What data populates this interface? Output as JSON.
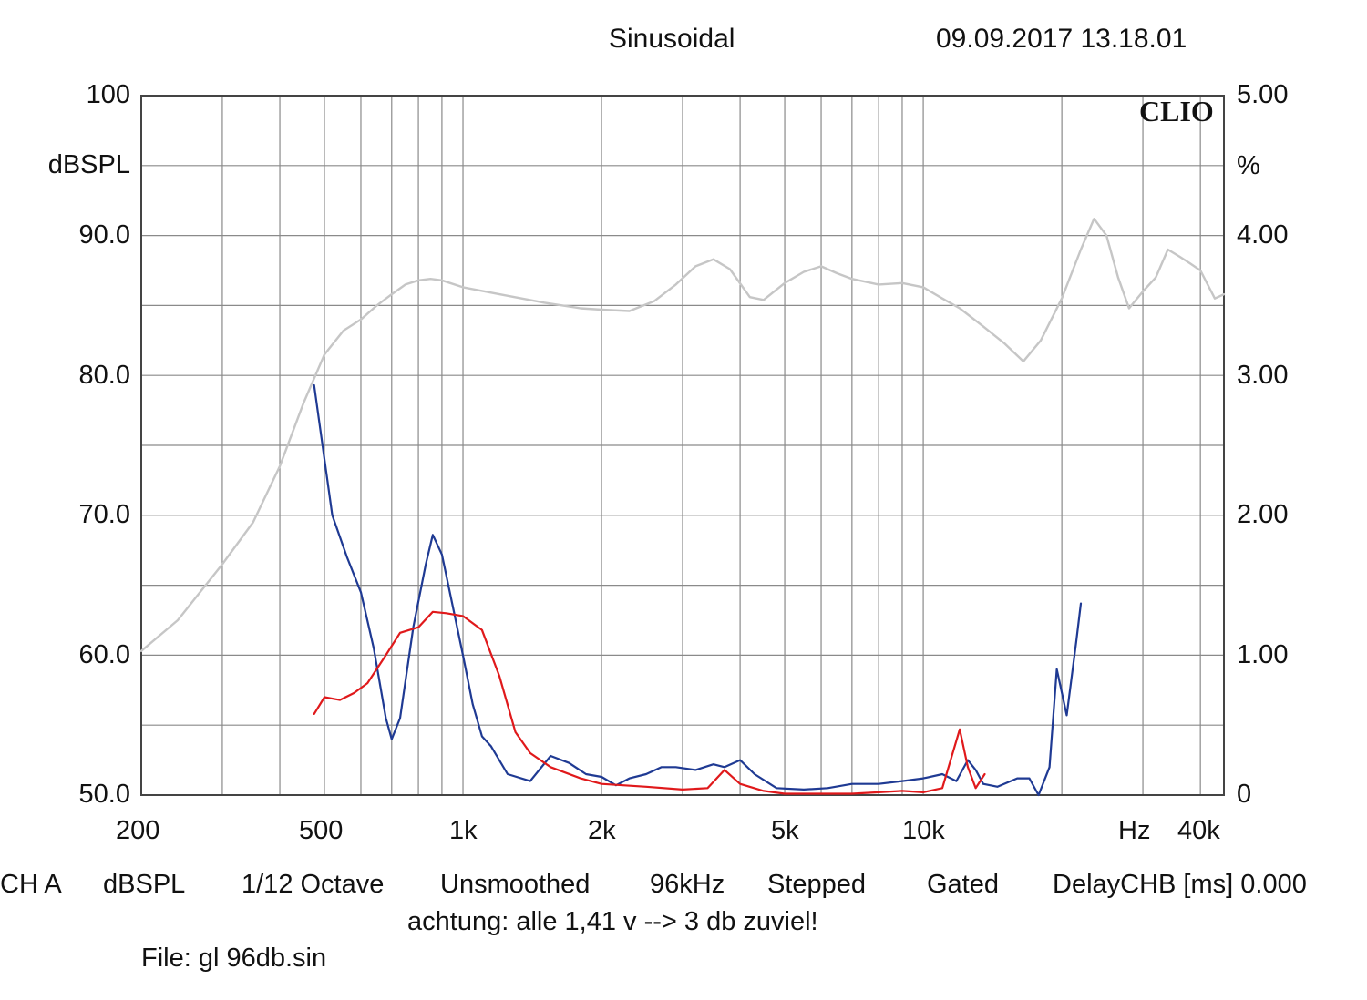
{
  "header": {
    "mode": "Sinusoidal",
    "timestamp": "09.09.2017 13.18.01",
    "brand": "CLIO"
  },
  "footer": {
    "settings": [
      "CH A",
      "dBSPL",
      "1/12 Octave",
      "Unsmoothed",
      "96kHz",
      "Stepped",
      "Gated",
      "DelayCHB [ms] 0.000"
    ],
    "note": "achtung: alle 1,41 v --> 3 db zuviel!",
    "file": "File: gl 96db.sin"
  },
  "colors": {
    "frequency_response": "#c6c6c6",
    "distortion_blue": "#1f3a93",
    "distortion_red": "#e0191b",
    "grid": "#8a8a8a"
  },
  "chart_data": {
    "type": "line",
    "title": "Sinusoidal",
    "x_scale": "log",
    "xlim": [
      200,
      45000
    ],
    "x_ticks": [
      200,
      500,
      1000,
      2000,
      5000,
      10000,
      40000
    ],
    "x_tick_labels": [
      "200",
      "500",
      "1k",
      "2k",
      "5k",
      "10k",
      "40k"
    ],
    "x_unit_label": "Hz",
    "ylabel": "dBSPL",
    "ylim": [
      50,
      100
    ],
    "y_ticks": [
      50,
      60,
      70,
      80,
      90,
      100
    ],
    "y_tick_labels": [
      "50.0",
      "60.0",
      "70.0",
      "80.0",
      "90.0",
      "100"
    ],
    "y2label": "%",
    "y2lim": [
      0,
      5
    ],
    "y2_ticks": [
      0,
      1,
      2,
      3,
      4,
      5
    ],
    "y2_tick_labels": [
      "0",
      "1.00",
      "2.00",
      "3.00",
      "4.00",
      "5.00"
    ],
    "grid": true,
    "series": [
      {
        "axis": "left",
        "color": "#c6c6c6",
        "points": [
          [
            200,
            60.3
          ],
          [
            240,
            62.5
          ],
          [
            300,
            66.5
          ],
          [
            350,
            69.5
          ],
          [
            400,
            73.5
          ],
          [
            450,
            78
          ],
          [
            500,
            81.5
          ],
          [
            550,
            83.2
          ],
          [
            600,
            84
          ],
          [
            650,
            85
          ],
          [
            700,
            85.8
          ],
          [
            750,
            86.5
          ],
          [
            800,
            86.8
          ],
          [
            850,
            86.9
          ],
          [
            900,
            86.8
          ],
          [
            1000,
            86.3
          ],
          [
            1200,
            85.8
          ],
          [
            1500,
            85.2
          ],
          [
            1800,
            84.8
          ],
          [
            2000,
            84.7
          ],
          [
            2300,
            84.6
          ],
          [
            2600,
            85.3
          ],
          [
            2900,
            86.5
          ],
          [
            3200,
            87.8
          ],
          [
            3500,
            88.3
          ],
          [
            3800,
            87.6
          ],
          [
            4200,
            85.6
          ],
          [
            4500,
            85.4
          ],
          [
            5000,
            86.6
          ],
          [
            5500,
            87.4
          ],
          [
            6000,
            87.8
          ],
          [
            6500,
            87.3
          ],
          [
            7000,
            86.9
          ],
          [
            8000,
            86.5
          ],
          [
            9000,
            86.6
          ],
          [
            10000,
            86.3
          ],
          [
            11000,
            85.5
          ],
          [
            12000,
            84.8
          ],
          [
            13500,
            83.5
          ],
          [
            15000,
            82.3
          ],
          [
            16500,
            81
          ],
          [
            18000,
            82.5
          ],
          [
            20000,
            85.5
          ],
          [
            22000,
            89
          ],
          [
            23500,
            91.2
          ],
          [
            25000,
            90
          ],
          [
            26500,
            87
          ],
          [
            28000,
            84.8
          ],
          [
            30000,
            86
          ],
          [
            32000,
            87
          ],
          [
            34000,
            89
          ],
          [
            36000,
            88.5
          ],
          [
            38000,
            88
          ],
          [
            40000,
            87.5
          ],
          [
            43000,
            85.5
          ],
          [
            45000,
            85.8
          ]
        ]
      },
      {
        "axis": "right",
        "color": "#1f3a93",
        "points": [
          [
            475,
            2.93
          ],
          [
            520,
            2.0
          ],
          [
            560,
            1.7
          ],
          [
            600,
            1.45
          ],
          [
            640,
            1.05
          ],
          [
            680,
            0.55
          ],
          [
            700,
            0.4
          ],
          [
            730,
            0.55
          ],
          [
            780,
            1.2
          ],
          [
            830,
            1.65
          ],
          [
            860,
            1.86
          ],
          [
            900,
            1.72
          ],
          [
            950,
            1.35
          ],
          [
            1000,
            1.0
          ],
          [
            1050,
            0.65
          ],
          [
            1100,
            0.42
          ],
          [
            1150,
            0.35
          ],
          [
            1250,
            0.15
          ],
          [
            1400,
            0.1
          ],
          [
            1550,
            0.28
          ],
          [
            1700,
            0.23
          ],
          [
            1850,
            0.15
          ],
          [
            2000,
            0.13
          ],
          [
            2150,
            0.07
          ],
          [
            2300,
            0.12
          ],
          [
            2500,
            0.15
          ],
          [
            2700,
            0.2
          ],
          [
            2900,
            0.2
          ],
          [
            3200,
            0.18
          ],
          [
            3500,
            0.22
          ],
          [
            3700,
            0.2
          ],
          [
            4000,
            0.25
          ],
          [
            4300,
            0.15
          ],
          [
            4800,
            0.05
          ],
          [
            5500,
            0.04
          ],
          [
            6200,
            0.05
          ],
          [
            7000,
            0.08
          ],
          [
            8000,
            0.08
          ],
          [
            9000,
            0.1
          ],
          [
            10000,
            0.12
          ],
          [
            11000,
            0.15
          ],
          [
            11800,
            0.1
          ],
          [
            12500,
            0.25
          ],
          [
            13000,
            0.18
          ],
          [
            13500,
            0.08
          ],
          [
            14500,
            0.06
          ],
          [
            16000,
            0.12
          ],
          [
            17000,
            0.12
          ],
          [
            17800,
            0.0
          ],
          [
            18800,
            0.2
          ],
          [
            19500,
            0.9
          ],
          [
            20500,
            0.57
          ],
          [
            21500,
            1.1
          ],
          [
            22000,
            1.37
          ]
        ]
      },
      {
        "axis": "right",
        "color": "#e0191b",
        "points": [
          [
            475,
            0.58
          ],
          [
            500,
            0.7
          ],
          [
            540,
            0.68
          ],
          [
            580,
            0.73
          ],
          [
            620,
            0.8
          ],
          [
            680,
            1.0
          ],
          [
            730,
            1.16
          ],
          [
            800,
            1.2
          ],
          [
            860,
            1.31
          ],
          [
            920,
            1.3
          ],
          [
            1000,
            1.28
          ],
          [
            1100,
            1.18
          ],
          [
            1200,
            0.85
          ],
          [
            1300,
            0.45
          ],
          [
            1400,
            0.3
          ],
          [
            1550,
            0.2
          ],
          [
            1800,
            0.12
          ],
          [
            2000,
            0.08
          ],
          [
            2500,
            0.06
          ],
          [
            3000,
            0.04
          ],
          [
            3400,
            0.05
          ],
          [
            3700,
            0.18
          ],
          [
            4000,
            0.08
          ],
          [
            4500,
            0.03
          ],
          [
            5000,
            0.01
          ],
          [
            6000,
            0.01
          ],
          [
            7000,
            0.01
          ],
          [
            8000,
            0.02
          ],
          [
            9000,
            0.03
          ],
          [
            10000,
            0.02
          ],
          [
            11000,
            0.05
          ],
          [
            12000,
            0.47
          ],
          [
            12500,
            0.2
          ],
          [
            13000,
            0.05
          ],
          [
            13600,
            0.15
          ]
        ]
      }
    ]
  }
}
